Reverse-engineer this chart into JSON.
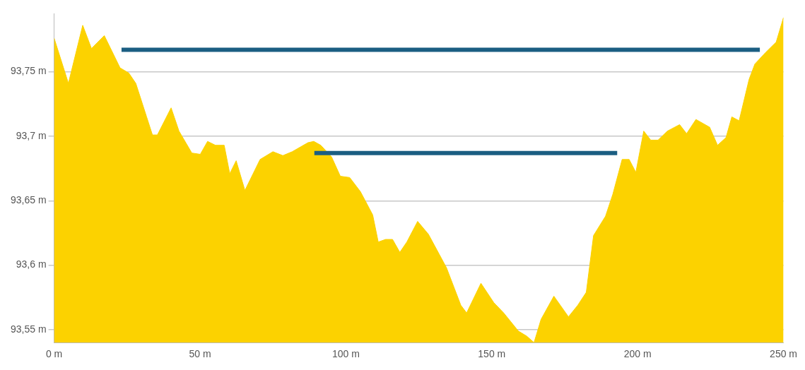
{
  "chart_data": {
    "type": "area",
    "grid": "y",
    "xlim": [
      0,
      250
    ],
    "ylim": [
      93.54,
      93.795
    ],
    "xticks": [
      {
        "value": 0,
        "label": "0 m"
      },
      {
        "value": 50,
        "label": "50 m"
      },
      {
        "value": 100,
        "label": "100 m"
      },
      {
        "value": 150,
        "label": "150 m"
      },
      {
        "value": 200,
        "label": "200 m"
      },
      {
        "value": 250,
        "label": "250 m"
      }
    ],
    "yticks": [
      {
        "value": 93.55,
        "label": "93,55 m"
      },
      {
        "value": 93.6,
        "label": "93,6 m"
      },
      {
        "value": 93.65,
        "label": "93,65 m"
      },
      {
        "value": 93.7,
        "label": "93,7 m"
      },
      {
        "value": 93.75,
        "label": "93,75 m"
      }
    ],
    "series": [
      {
        "color": "#fcd200",
        "x": [
          0,
          4.9,
          9.8,
          12.8,
          17.2,
          22.6,
          25.6,
          28,
          31.7,
          33.7,
          35.4,
          40.1,
          42.8,
          47.2,
          50.1,
          52.6,
          55.3,
          58.3,
          60.2,
          62.4,
          65.4,
          70.6,
          75,
          78.4,
          81.6,
          87,
          89,
          91.4,
          95.1,
          98.1,
          101.3,
          105,
          109.2,
          111.1,
          113.6,
          116,
          118.5,
          120.9,
          124.6,
          128.3,
          134.5,
          139.4,
          141.4,
          146.3,
          150.7,
          154.1,
          159.1,
          162,
          164.5,
          166.9,
          171.3,
          176.3,
          179.5,
          182.4,
          184.9,
          189,
          191.5,
          194.7,
          197.1,
          199.4,
          202.1,
          204.5,
          207,
          210.2,
          214.4,
          216.8,
          220,
          224.7,
          227.4,
          230.3,
          232.3,
          234.8,
          238.2,
          240.2,
          243.9,
          247.5,
          250
        ],
        "values": [
          93.776,
          93.741,
          93.786,
          93.768,
          93.778,
          93.753,
          93.749,
          93.741,
          93.715,
          93.701,
          93.701,
          93.722,
          93.704,
          93.687,
          93.686,
          93.696,
          93.693,
          93.693,
          93.671,
          93.681,
          93.658,
          93.682,
          93.688,
          93.685,
          93.688,
          93.695,
          93.696,
          93.693,
          93.684,
          93.669,
          93.668,
          93.657,
          93.639,
          93.618,
          93.62,
          93.62,
          93.61,
          93.618,
          93.634,
          93.624,
          93.598,
          93.569,
          93.563,
          93.586,
          93.571,
          93.563,
          93.549,
          93.545,
          93.54,
          93.558,
          93.576,
          93.56,
          93.569,
          93.579,
          93.623,
          93.638,
          93.655,
          93.682,
          93.682,
          93.672,
          93.704,
          93.697,
          93.697,
          93.704,
          93.709,
          93.702,
          93.713,
          93.707,
          93.693,
          93.699,
          93.715,
          93.712,
          93.744,
          93.756,
          93.765,
          93.773,
          93.792
        ]
      },
      {
        "type": "line",
        "color": "#1b5e82",
        "x": [
          23.1,
          241.9
        ],
        "values": [
          93.767,
          93.767
        ]
      },
      {
        "type": "line",
        "color": "#1b5e82",
        "x": [
          89.2,
          193
        ],
        "values": [
          93.687,
          93.687
        ]
      }
    ]
  }
}
